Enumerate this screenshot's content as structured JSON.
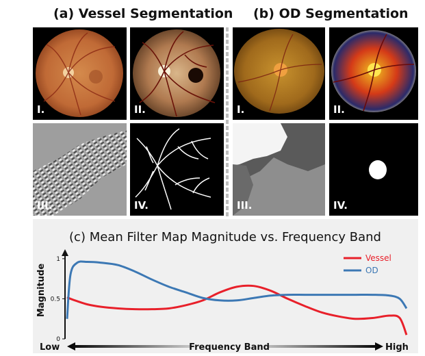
{
  "sections": {
    "vessel_title": "(a) Vessel Segmentation",
    "od_title": "(b) OD Segmentation"
  },
  "panels": {
    "vessel": {
      "i": "I.",
      "ii": "II.",
      "iii": "III.",
      "iv": "IV."
    },
    "od": {
      "i": "I.",
      "ii": "II.",
      "iii": "III.",
      "iv": "IV."
    }
  },
  "colors": {
    "vessel": "#e8202a",
    "od": "#3c78b4"
  },
  "chart_data": {
    "type": "line",
    "title": "(c) Mean Filter Map Magnitude vs. Frequency Band",
    "ylabel": "Magnitude",
    "xlabel": "Frequency Band",
    "x_low_label": "Low",
    "x_high_label": "High",
    "ylim": [
      0,
      1.05
    ],
    "yticks": [
      "0",
      "0.5",
      "1"
    ],
    "legend_position": "top-right",
    "x": [
      0,
      0.01,
      0.03,
      0.06,
      0.1,
      0.15,
      0.2,
      0.25,
      0.3,
      0.35,
      0.4,
      0.45,
      0.5,
      0.55,
      0.6,
      0.65,
      0.7,
      0.75,
      0.8,
      0.85,
      0.9,
      0.95,
      0.98,
      1.0
    ],
    "series": [
      {
        "name": "Vessel",
        "color": "#e8202a",
        "values": [
          0.52,
          0.5,
          0.47,
          0.43,
          0.4,
          0.38,
          0.37,
          0.37,
          0.38,
          0.42,
          0.48,
          0.58,
          0.65,
          0.66,
          0.6,
          0.5,
          0.41,
          0.33,
          0.28,
          0.25,
          0.26,
          0.29,
          0.26,
          0.05
        ]
      },
      {
        "name": "OD",
        "color": "#3c78b4",
        "values": [
          0.25,
          0.8,
          0.95,
          0.96,
          0.95,
          0.92,
          0.84,
          0.74,
          0.65,
          0.58,
          0.51,
          0.48,
          0.48,
          0.51,
          0.54,
          0.55,
          0.55,
          0.55,
          0.55,
          0.55,
          0.55,
          0.54,
          0.5,
          0.38
        ]
      }
    ]
  }
}
